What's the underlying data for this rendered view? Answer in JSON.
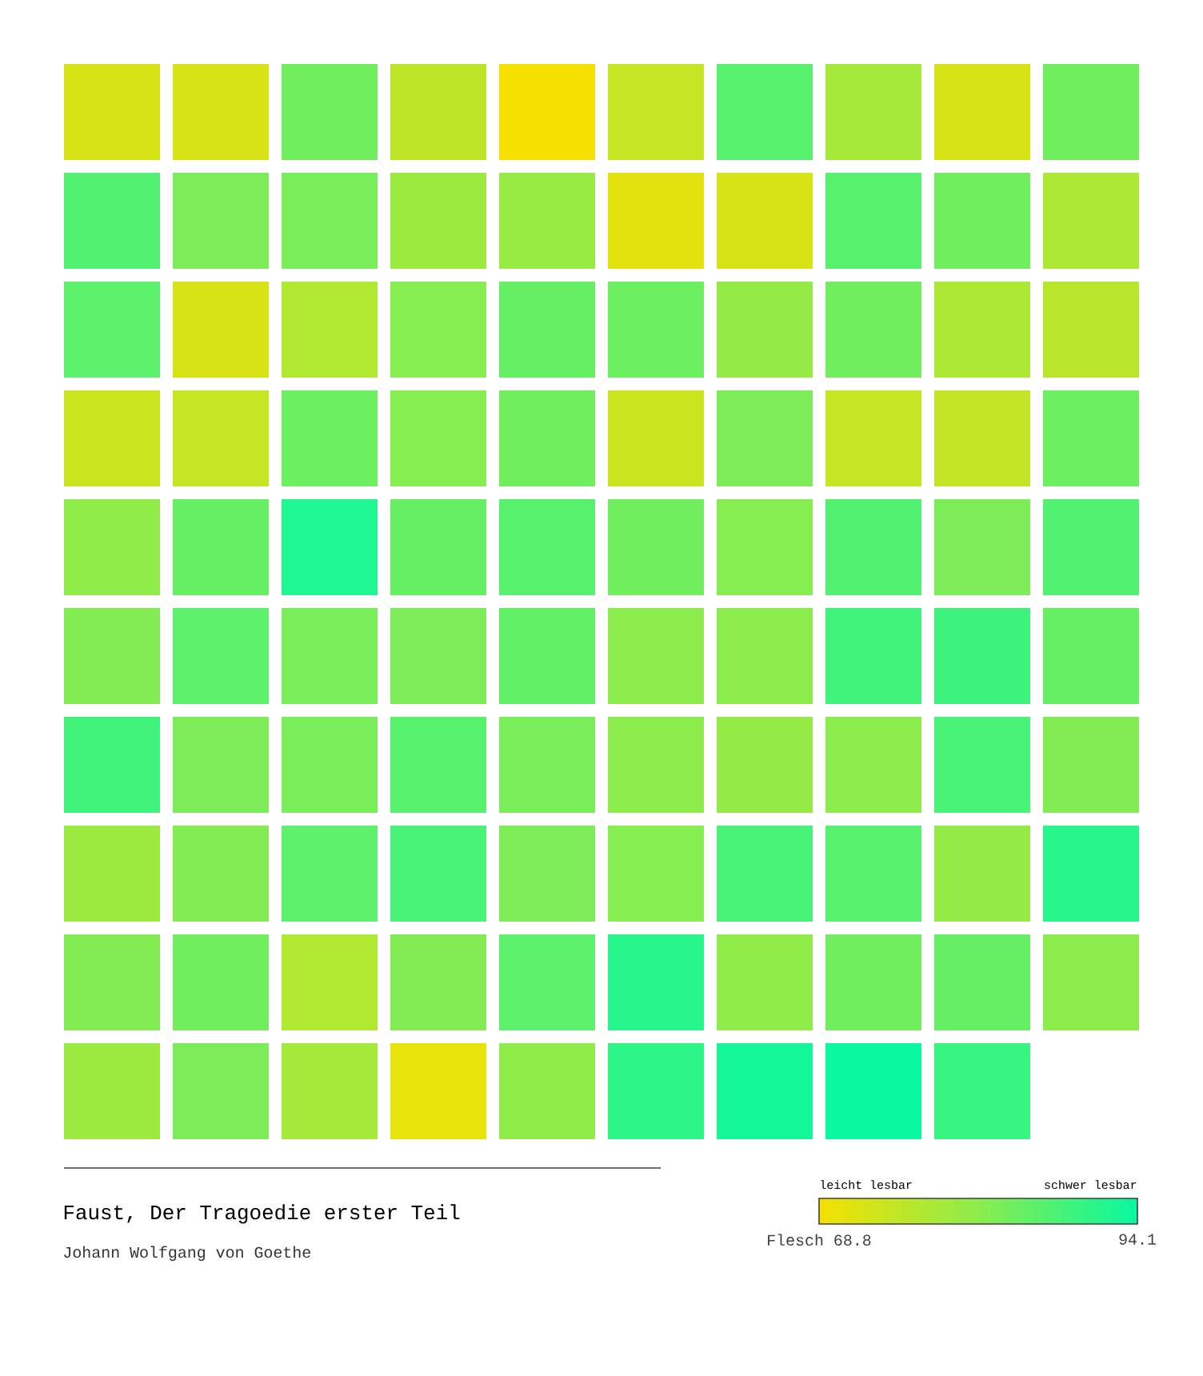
{
  "chart_data": {
    "type": "heatmap",
    "title": "Faust, Der Tragoedie erster Teil",
    "subtitle": "Johann Wolfgang von Goethe",
    "categories": [
      null,
      null,
      null,
      null,
      null,
      null,
      null,
      null,
      null,
      null
    ],
    "y_categories": [
      null,
      null,
      null,
      null,
      null,
      null,
      null,
      null,
      null,
      null
    ],
    "cells": [
      [
        72.5,
        72.5,
        84,
        75.5,
        68.8,
        74.5,
        86.5,
        78.5,
        72.5,
        84
      ],
      [
        87,
        83,
        83.5,
        79.5,
        80,
        71,
        72.5,
        86.5,
        84,
        77.5
      ],
      [
        86,
        72.5,
        77,
        82,
        85,
        84.5,
        80.5,
        84,
        77.5,
        76
      ],
      [
        74,
        74.5,
        84.5,
        82,
        84,
        74,
        83,
        74.5,
        75,
        84.5
      ],
      [
        81,
        85,
        92,
        85,
        86.5,
        84,
        82,
        87,
        83,
        87
      ],
      [
        82.5,
        86,
        83.5,
        83,
        85.5,
        81.5,
        81.5,
        88.5,
        89,
        85
      ],
      [
        88.5,
        83,
        83.5,
        86.5,
        83.5,
        81.5,
        80.5,
        81.5,
        88,
        82.5
      ],
      [
        79.5,
        82.5,
        86,
        88,
        83,
        82,
        88,
        86.5,
        80.5,
        91
      ],
      [
        82.5,
        84,
        77,
        82.5,
        86,
        91,
        81,
        84,
        85,
        81.5
      ],
      [
        79.5,
        83,
        78.5,
        70.5,
        81,
        90.5,
        93,
        94.1,
        89.5,
        null
      ]
    ],
    "clim": [
      68.8,
      94.1
    ],
    "cticks": [
      {
        "value": 68.8,
        "label": "Flesch 68.8"
      },
      {
        "value": 94.1,
        "label": "94.1"
      }
    ],
    "annotations": [
      "leicht lesbar",
      "schwer lesbar"
    ]
  }
}
